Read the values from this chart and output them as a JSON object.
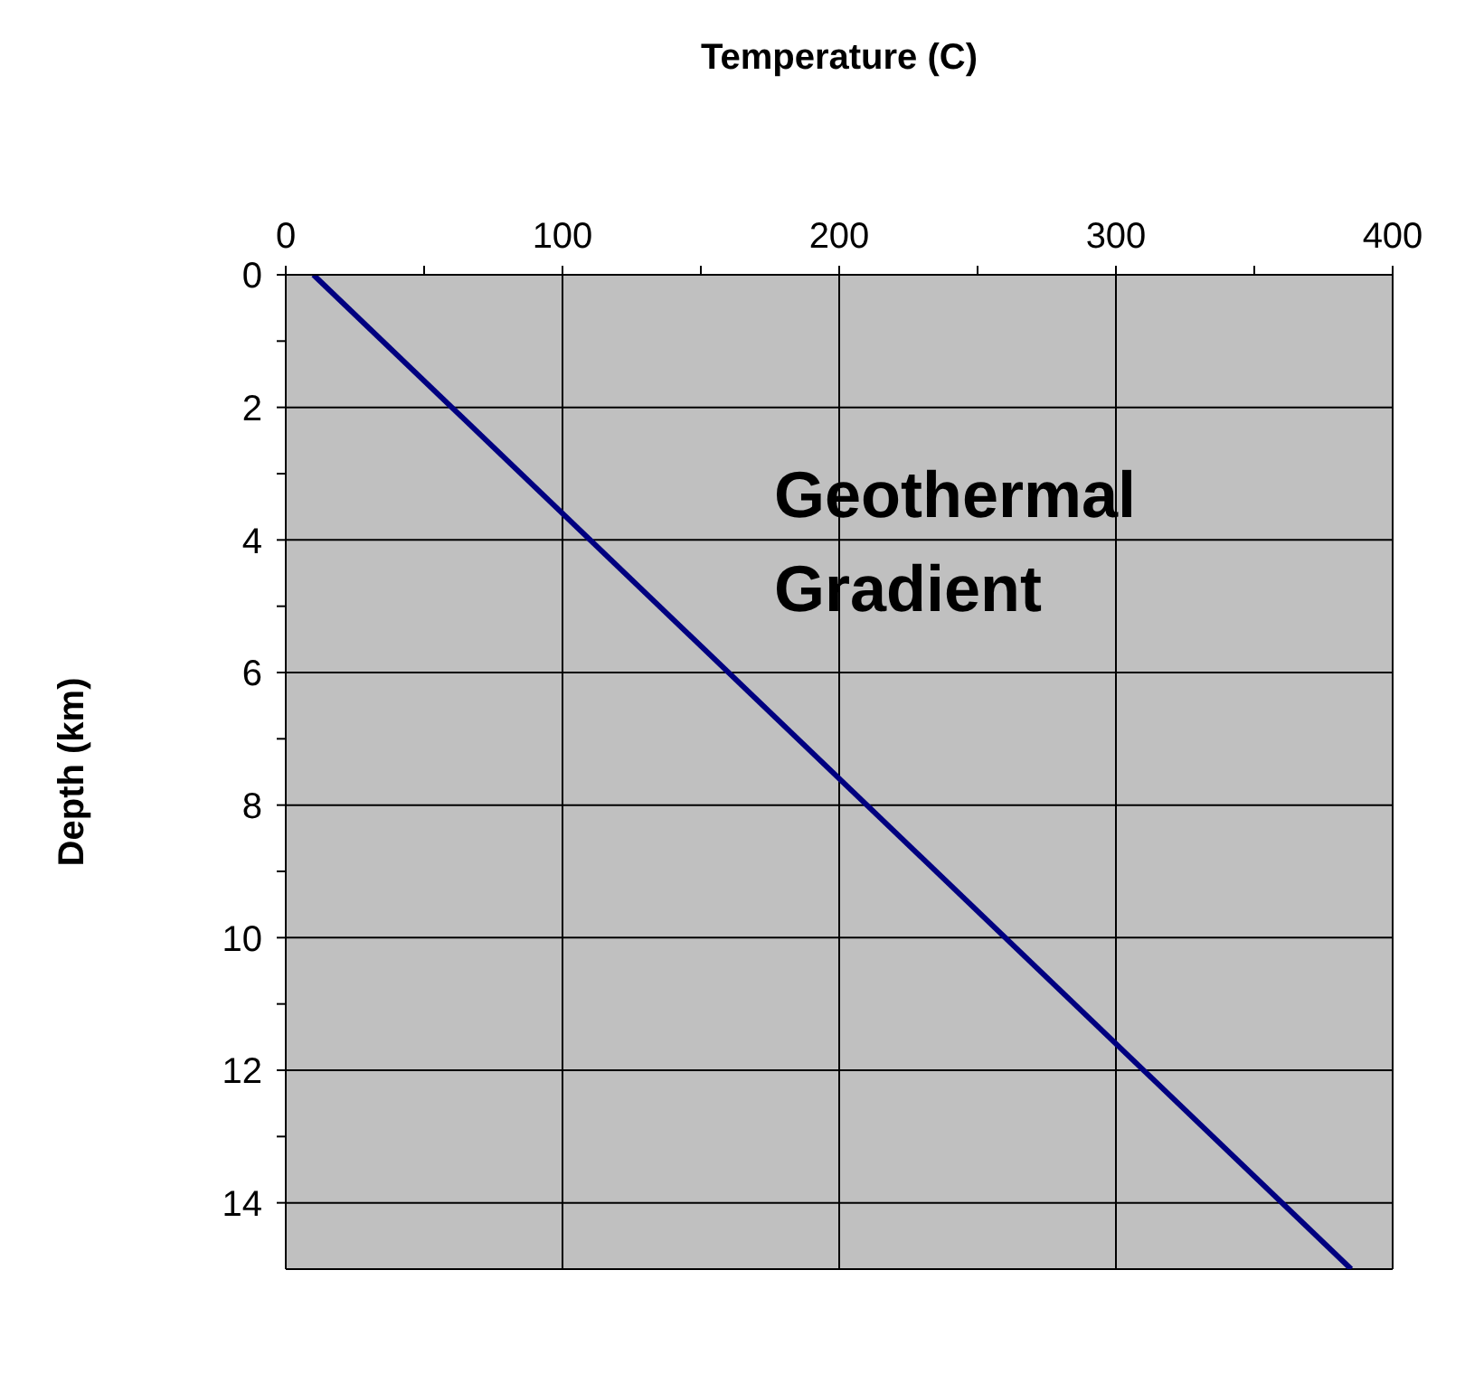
{
  "chart_data": {
    "type": "line",
    "xlabel": "Temperature (C)",
    "ylabel": "Depth (km)",
    "x": [
      10,
      385
    ],
    "series": [
      {
        "color": "#000080",
        "values": [
          0,
          15
        ]
      }
    ],
    "xlim": [
      0,
      400
    ],
    "xticks": [
      0,
      {
        "value": 50,
        "label": null
      },
      100,
      {
        "value": 150,
        "label": null
      },
      200,
      {
        "value": 250,
        "label": null
      },
      300,
      {
        "value": 350,
        "label": null
      },
      400
    ],
    "ylim": [
      15,
      0
    ],
    "yticks": [
      0,
      {
        "value": 1,
        "label": null
      },
      2,
      {
        "value": 3,
        "label": null
      },
      4,
      {
        "value": 5,
        "label": null
      },
      6,
      {
        "value": 7,
        "label": null
      },
      8,
      {
        "value": 9,
        "label": null
      },
      10,
      {
        "value": 11,
        "label": null
      },
      12,
      {
        "value": 13,
        "label": null
      },
      14
    ],
    "grid": true,
    "marker": "none",
    "line_style": "solid",
    "annotations": [
      "Geothermal Gradient"
    ]
  }
}
